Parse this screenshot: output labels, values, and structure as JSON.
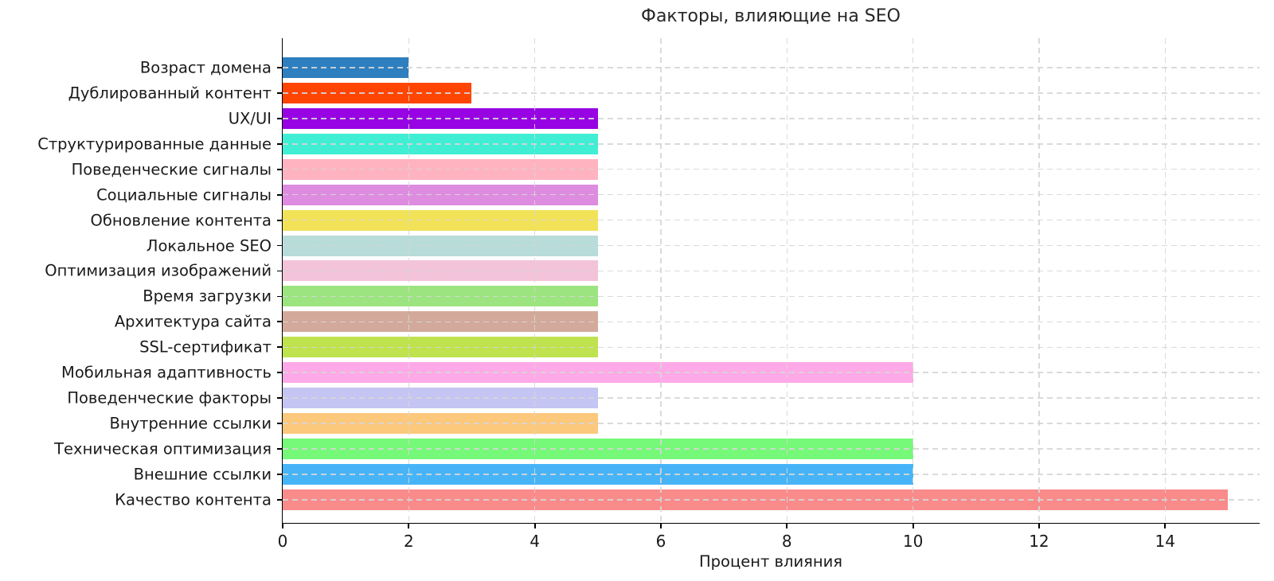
{
  "chart_data": {
    "type": "bar",
    "orientation": "horizontal",
    "title": "Факторы, влияющие на SEO",
    "xlabel": "Процент влияния",
    "ylabel": "",
    "xlim": [
      0,
      15.5
    ],
    "xticks": [
      0,
      2,
      4,
      6,
      8,
      10,
      12,
      14
    ],
    "grid": {
      "visible": true,
      "style": "dashed",
      "axes": "both"
    },
    "legend": "none",
    "categories": [
      "Возраст домена",
      "Дублированный контент",
      "UX/UI",
      "Структурированные данные",
      "Поведенческие сигналы",
      "Социальные сигналы",
      "Обновление контента",
      "Локальное SEO",
      "Оптимизация изображений",
      "Время загрузки",
      "Архитектура сайта",
      "SSL-сертификат",
      "Мобильная адаптивность",
      "Поведенческие факторы",
      "Внутренние ссылки",
      "Техническая оптимизация",
      "Внешние ссылки",
      "Качество контента"
    ],
    "values": [
      2,
      3,
      5,
      5,
      5,
      5,
      5,
      5,
      5,
      5,
      5,
      5,
      10,
      5,
      5,
      10,
      10,
      15
    ],
    "bar_colors": [
      "#2e7fbf",
      "#ff4500",
      "#9703e3",
      "#40eed4",
      "#ffb3c0",
      "#dd8ce0",
      "#f2e258",
      "#b7dcd9",
      "#f3c3da",
      "#9ce47f",
      "#d2a99b",
      "#bfe24f",
      "#ffa9e8",
      "#c5c5f3",
      "#fcc87c",
      "#76f878",
      "#47b4f8",
      "#f98b8b"
    ]
  },
  "colors": {
    "background": "#ffffff",
    "axis": "#000000",
    "grid": "#d6d6d6",
    "text": "#1a1a1a",
    "title": "#262626"
  }
}
